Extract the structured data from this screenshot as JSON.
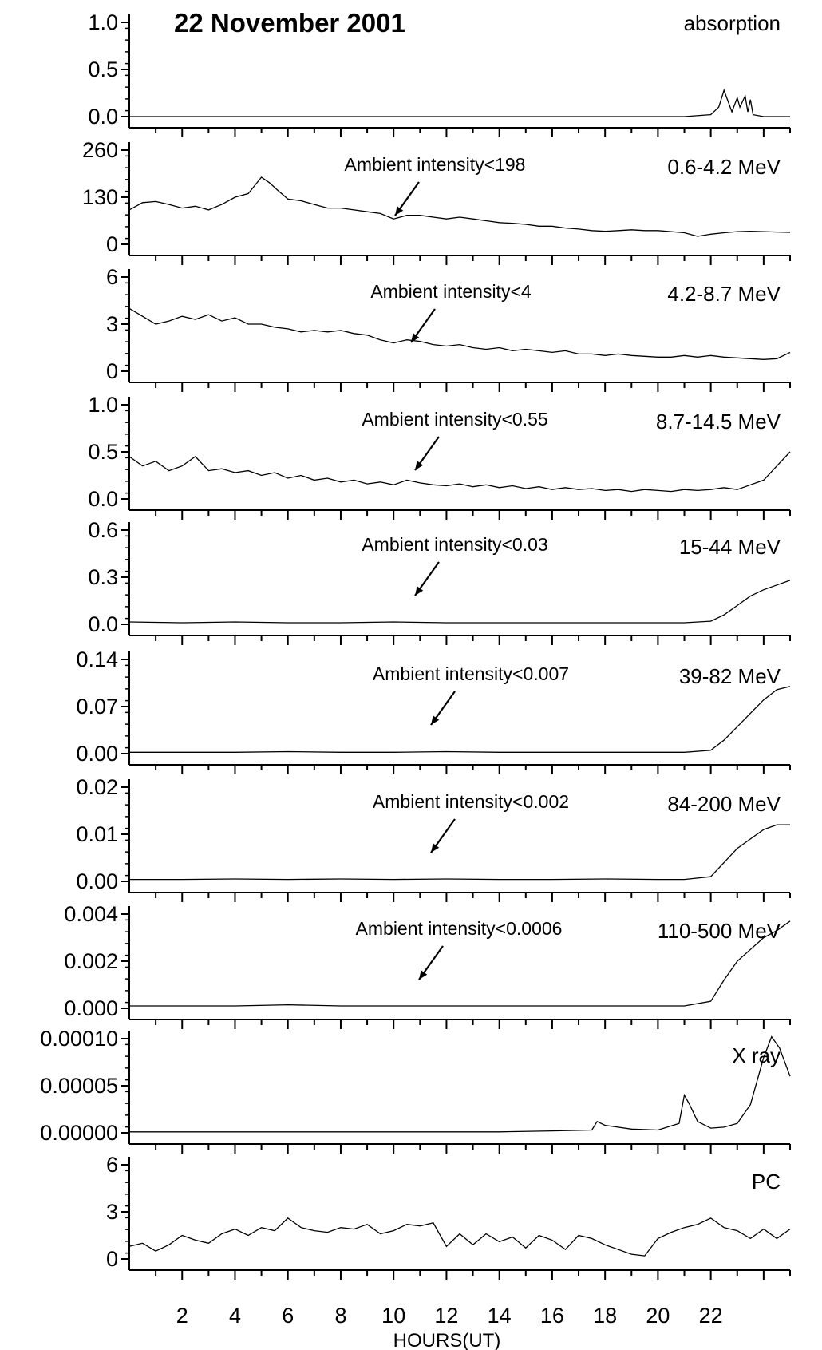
{
  "figure": {
    "title": "22 November 2001",
    "xlabel": "HOURS(UT)",
    "xlim": [
      0,
      25
    ],
    "xticks": [
      2,
      4,
      6,
      8,
      10,
      12,
      14,
      16,
      18,
      20,
      22
    ]
  },
  "colors": {
    "line": "#000000",
    "background": "#ffffff"
  },
  "chart_data": [
    {
      "type": "line",
      "label": "absorption",
      "ylim": [
        0,
        1.0
      ],
      "yticks": [
        "0.0",
        "0.5",
        "1.0"
      ],
      "annotation": null,
      "x": [
        0,
        2,
        4,
        6,
        8,
        10,
        12,
        14,
        16,
        18,
        20,
        21,
        22,
        22.3,
        22.5,
        22.8,
        23,
        23.1,
        23.3,
        23.4,
        23.5,
        23.6,
        24,
        25
      ],
      "y": [
        0,
        0,
        0,
        0,
        0,
        0,
        0,
        0,
        0,
        0,
        0,
        0,
        0.02,
        0.1,
        0.28,
        0.05,
        0.2,
        0.1,
        0.22,
        0.05,
        0.18,
        0.02,
        0,
        0
      ]
    },
    {
      "type": "line",
      "label": "0.6-4.2 MeV",
      "ylim": [
        0,
        260
      ],
      "yticks": [
        "0",
        "130",
        "260"
      ],
      "annotation": "Ambient intensity<198",
      "x": [
        0,
        0.5,
        1,
        1.5,
        2,
        2.5,
        3,
        3.5,
        4,
        4.5,
        5,
        5.3,
        5.6,
        6,
        6.5,
        7,
        7.5,
        8,
        8.5,
        9,
        9.5,
        10,
        10.5,
        11,
        11.5,
        12,
        12.5,
        13,
        13.5,
        14,
        14.5,
        15,
        15.5,
        16,
        16.5,
        17,
        17.5,
        18,
        18.5,
        19,
        19.5,
        20,
        20.5,
        21,
        21.5,
        22,
        22.5,
        23,
        23.5,
        24,
        24.5,
        25
      ],
      "y": [
        95,
        115,
        118,
        110,
        100,
        105,
        95,
        110,
        130,
        140,
        185,
        170,
        150,
        125,
        120,
        110,
        100,
        100,
        95,
        90,
        85,
        70,
        80,
        80,
        75,
        70,
        75,
        70,
        65,
        60,
        58,
        55,
        50,
        50,
        45,
        42,
        38,
        36,
        38,
        40,
        38,
        38,
        35,
        32,
        22,
        28,
        32,
        35,
        36,
        35,
        34,
        33
      ]
    },
    {
      "type": "line",
      "label": "4.2-8.7 MeV",
      "ylim": [
        0,
        6
      ],
      "yticks": [
        "0",
        "3",
        "6"
      ],
      "annotation": "Ambient intensity<4",
      "x": [
        0,
        0.5,
        1,
        1.5,
        2,
        2.5,
        3,
        3.5,
        4,
        4.5,
        5,
        5.5,
        6,
        6.5,
        7,
        7.5,
        8,
        8.5,
        9,
        9.5,
        10,
        10.5,
        11,
        11.5,
        12,
        12.5,
        13,
        13.5,
        14,
        14.5,
        15,
        15.5,
        16,
        16.5,
        17,
        17.5,
        18,
        18.5,
        19,
        19.5,
        20,
        20.5,
        21,
        21.5,
        22,
        22.5,
        23,
        23.5,
        24,
        24.5,
        25
      ],
      "y": [
        4.0,
        3.5,
        3.0,
        3.2,
        3.5,
        3.3,
        3.6,
        3.2,
        3.4,
        3.0,
        3.0,
        2.8,
        2.7,
        2.5,
        2.6,
        2.5,
        2.6,
        2.4,
        2.3,
        2.0,
        1.8,
        2.0,
        1.9,
        1.7,
        1.6,
        1.7,
        1.5,
        1.4,
        1.5,
        1.3,
        1.4,
        1.3,
        1.2,
        1.3,
        1.1,
        1.1,
        1.0,
        1.1,
        1.0,
        0.95,
        0.9,
        0.9,
        1.0,
        0.9,
        1.0,
        0.9,
        0.85,
        0.8,
        0.75,
        0.8,
        1.2
      ]
    },
    {
      "type": "line",
      "label": "8.7-14.5 MeV",
      "ylim": [
        0,
        1.0
      ],
      "yticks": [
        "0.0",
        "0.5",
        "1.0"
      ],
      "annotation": "Ambient intensity<0.55",
      "x": [
        0,
        0.5,
        1,
        1.5,
        2,
        2.5,
        3,
        3.5,
        4,
        4.5,
        5,
        5.5,
        6,
        6.5,
        7,
        7.5,
        8,
        8.5,
        9,
        9.5,
        10,
        10.5,
        11,
        11.5,
        12,
        12.5,
        13,
        13.5,
        14,
        14.5,
        15,
        15.5,
        16,
        16.5,
        17,
        17.5,
        18,
        18.5,
        19,
        19.5,
        20,
        20.5,
        21,
        21.5,
        22,
        22.5,
        23,
        23.5,
        24,
        24.5,
        25
      ],
      "y": [
        0.45,
        0.35,
        0.4,
        0.3,
        0.35,
        0.45,
        0.3,
        0.32,
        0.28,
        0.3,
        0.25,
        0.28,
        0.22,
        0.25,
        0.2,
        0.22,
        0.18,
        0.2,
        0.16,
        0.18,
        0.15,
        0.2,
        0.17,
        0.15,
        0.14,
        0.16,
        0.13,
        0.15,
        0.12,
        0.14,
        0.11,
        0.13,
        0.1,
        0.12,
        0.1,
        0.11,
        0.09,
        0.1,
        0.08,
        0.1,
        0.09,
        0.08,
        0.1,
        0.09,
        0.1,
        0.12,
        0.1,
        0.15,
        0.2,
        0.35,
        0.5
      ]
    },
    {
      "type": "line",
      "label": "15-44 MeV",
      "ylim": [
        0,
        0.6
      ],
      "yticks": [
        "0.0",
        "0.3",
        "0.6"
      ],
      "annotation": "Ambient intensity<0.03",
      "x": [
        0,
        2,
        4,
        6,
        8,
        10,
        12,
        14,
        16,
        18,
        20,
        21,
        22,
        22.5,
        23,
        23.5,
        24,
        24.5,
        25
      ],
      "y": [
        0.015,
        0.01,
        0.015,
        0.01,
        0.01,
        0.015,
        0.01,
        0.01,
        0.01,
        0.01,
        0.01,
        0.01,
        0.02,
        0.06,
        0.12,
        0.18,
        0.22,
        0.25,
        0.28
      ]
    },
    {
      "type": "line",
      "label": "39-82 MeV",
      "ylim": [
        0,
        0.14
      ],
      "yticks": [
        "0.00",
        "0.07",
        "0.14"
      ],
      "annotation": "Ambient intensity<0.007",
      "x": [
        0,
        2,
        4,
        6,
        8,
        10,
        12,
        14,
        16,
        18,
        20,
        21,
        22,
        22.5,
        23,
        23.5,
        24,
        24.5,
        25
      ],
      "y": [
        0.002,
        0.002,
        0.002,
        0.003,
        0.002,
        0.002,
        0.003,
        0.002,
        0.002,
        0.002,
        0.002,
        0.002,
        0.005,
        0.02,
        0.04,
        0.06,
        0.08,
        0.095,
        0.1
      ]
    },
    {
      "type": "line",
      "label": "84-200 MeV",
      "ylim": [
        0,
        0.02
      ],
      "yticks": [
        "0.00",
        "0.01",
        "0.02"
      ],
      "annotation": "Ambient intensity<0.002",
      "x": [
        0,
        2,
        4,
        6,
        8,
        10,
        12,
        14,
        16,
        18,
        20,
        21,
        22,
        22.5,
        23,
        23.5,
        24,
        24.5,
        25
      ],
      "y": [
        0.0004,
        0.0004,
        0.0005,
        0.0004,
        0.0005,
        0.0004,
        0.0005,
        0.0004,
        0.0004,
        0.0005,
        0.0004,
        0.0004,
        0.001,
        0.004,
        0.007,
        0.009,
        0.011,
        0.012,
        0.012
      ]
    },
    {
      "type": "line",
      "label": "110-500 MeV",
      "ylim": [
        0,
        0.004
      ],
      "yticks": [
        "0.000",
        "0.002",
        "0.004"
      ],
      "annotation": "Ambient intensity<0.0006",
      "x": [
        0,
        2,
        4,
        6,
        8,
        10,
        12,
        14,
        16,
        18,
        20,
        21,
        22,
        22.5,
        23,
        23.5,
        24,
        24.5,
        25
      ],
      "y": [
        0.0001,
        0.0001,
        0.0001,
        0.00015,
        0.0001,
        0.0001,
        0.0001,
        0.0001,
        0.0001,
        0.0001,
        0.0001,
        0.0001,
        0.0003,
        0.0012,
        0.002,
        0.0025,
        0.003,
        0.0033,
        0.0037
      ]
    },
    {
      "type": "line",
      "label": "X ray",
      "ylim": [
        0,
        0.0001
      ],
      "yticks": [
        "0.00000",
        "0.00005",
        "0.00010"
      ],
      "annotation": null,
      "x": [
        0,
        2,
        4,
        6,
        8,
        10,
        12,
        14,
        16,
        17.5,
        17.7,
        18,
        19,
        20,
        20.8,
        21,
        21.2,
        21.5,
        22,
        22.5,
        23,
        23.5,
        24,
        24.3,
        24.6,
        25
      ],
      "y": [
        1e-06,
        1e-06,
        1e-06,
        1e-06,
        1e-06,
        1e-06,
        1e-06,
        1e-06,
        2e-06,
        3e-06,
        1.2e-05,
        8e-06,
        4e-06,
        3e-06,
        1e-05,
        4e-05,
        3e-05,
        1.2e-05,
        5e-06,
        6e-06,
        1e-05,
        3e-05,
        8e-05,
        0.000102,
        9e-05,
        6e-05
      ]
    },
    {
      "type": "line",
      "label": "PC",
      "ylim": [
        0,
        6
      ],
      "yticks": [
        "0",
        "3",
        "6"
      ],
      "annotation": null,
      "x": [
        0,
        0.5,
        1,
        1.5,
        2,
        2.5,
        3,
        3.5,
        4,
        4.5,
        5,
        5.5,
        6,
        6.5,
        7,
        7.5,
        8,
        8.5,
        9,
        9.5,
        10,
        10.5,
        11,
        11.5,
        12,
        12.5,
        13,
        13.5,
        14,
        14.5,
        15,
        15.5,
        16,
        16.5,
        17,
        17.5,
        18,
        18.5,
        19,
        19.5,
        20,
        20.5,
        21,
        21.5,
        22,
        22.5,
        23,
        23.5,
        24,
        24.5,
        25
      ],
      "y": [
        0.8,
        1.0,
        0.5,
        0.9,
        1.5,
        1.2,
        1.0,
        1.6,
        1.9,
        1.5,
        2.0,
        1.8,
        2.6,
        2.0,
        1.8,
        1.7,
        2.0,
        1.9,
        2.2,
        1.6,
        1.8,
        2.2,
        2.1,
        2.3,
        0.8,
        1.6,
        0.9,
        1.6,
        1.1,
        1.4,
        0.7,
        1.5,
        1.2,
        0.6,
        1.5,
        1.3,
        0.9,
        0.6,
        0.3,
        0.2,
        1.3,
        1.7,
        2.0,
        2.2,
        2.6,
        2.0,
        1.8,
        1.3,
        1.9,
        1.3,
        1.9
      ]
    }
  ]
}
